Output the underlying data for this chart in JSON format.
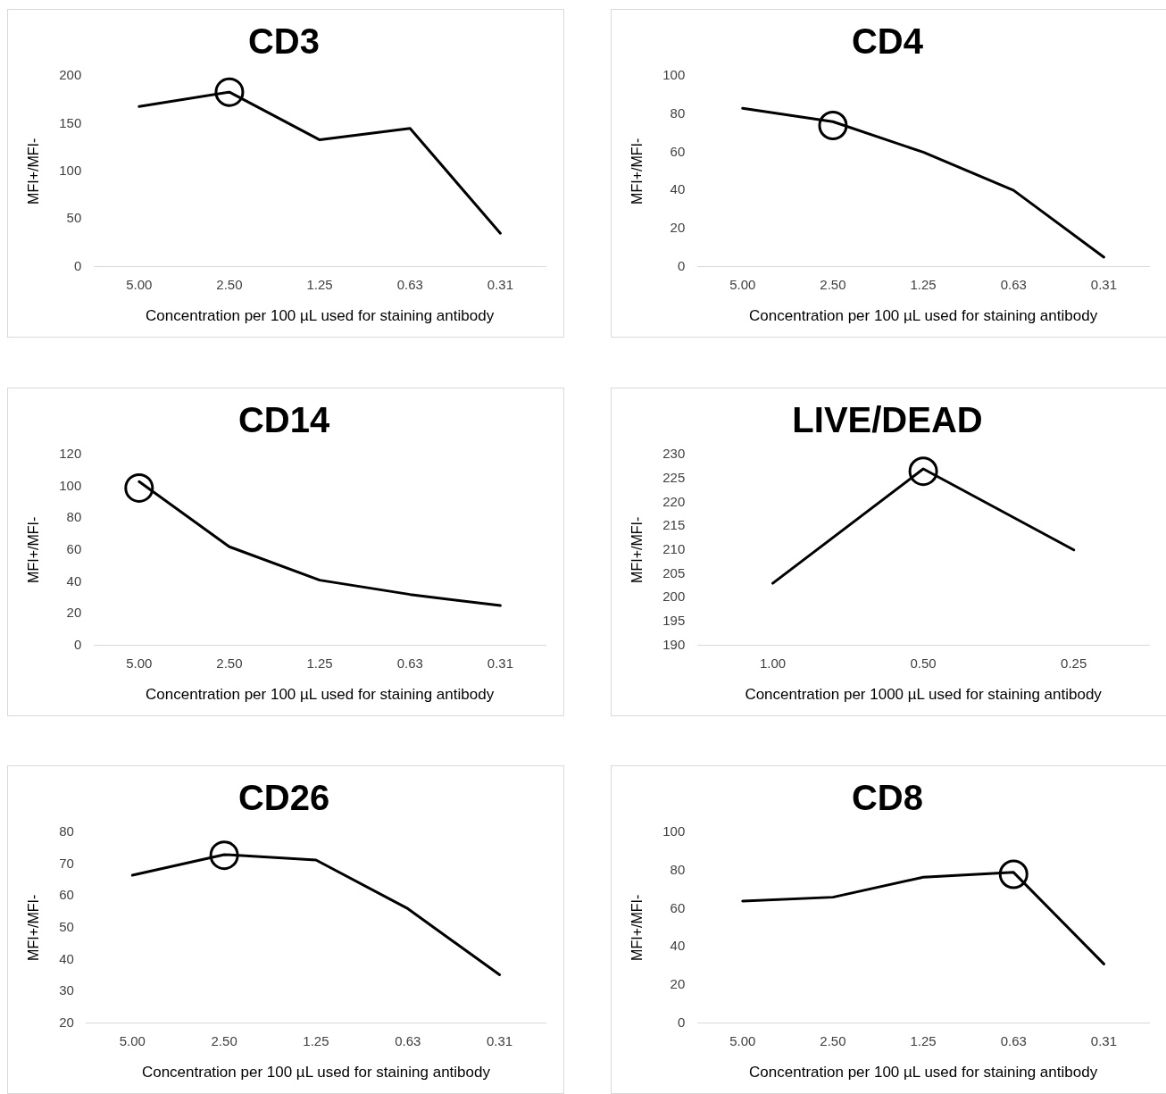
{
  "chart_data": [
    {
      "type": "line",
      "title": "CD3",
      "xlabel": "Concentration per 100 µL used for staining antibody",
      "ylabel": "MFI+/MFI-",
      "categories": [
        "5.00",
        "2.50",
        "1.25",
        "0.63",
        "0.31"
      ],
      "ylim": [
        0,
        200
      ],
      "yticks": [
        0,
        50,
        100,
        150,
        200
      ],
      "series": [
        {
          "color": "#000000",
          "values": [
            168,
            183,
            133,
            145,
            35
          ],
          "marker": "none"
        },
        {
          "type": "scatter",
          "x": [
            "2.50"
          ],
          "values": [
            183
          ],
          "color": "#000000",
          "marker": "circle"
        }
      ]
    },
    {
      "type": "line",
      "title": "CD4",
      "xlabel": "Concentration per 100 µL used for staining antibody",
      "ylabel": "MFI+/MFI-",
      "categories": [
        "5.00",
        "2.50",
        "1.25",
        "0.63",
        "0.31"
      ],
      "ylim": [
        0,
        100
      ],
      "yticks": [
        0,
        20,
        40,
        60,
        80,
        100
      ],
      "series": [
        {
          "color": "#000000",
          "values": [
            83,
            76,
            60,
            40,
            5
          ],
          "marker": "none"
        },
        {
          "type": "scatter",
          "x": [
            "2.50"
          ],
          "values": [
            74
          ],
          "color": "#000000",
          "marker": "circle"
        }
      ]
    },
    {
      "type": "line",
      "title": "CD14",
      "xlabel": "Concentration per 100 µL used for staining antibody",
      "ylabel": "MFI+/MFI-",
      "categories": [
        "5.00",
        "2.50",
        "1.25",
        "0.63",
        "0.31"
      ],
      "ylim": [
        0,
        120
      ],
      "yticks": [
        0,
        20,
        40,
        60,
        80,
        100,
        120
      ],
      "series": [
        {
          "color": "#000000",
          "values": [
            103,
            62,
            41,
            32,
            25
          ],
          "marker": "none"
        },
        {
          "type": "scatter",
          "x": [
            "5.00"
          ],
          "values": [
            99
          ],
          "color": "#000000",
          "marker": "circle"
        }
      ]
    },
    {
      "type": "line",
      "title": "LIVE/DEAD",
      "xlabel": "Concentration per 1000 µL used for staining antibody",
      "ylabel": "MFI+/MFI-",
      "categories": [
        "1.00",
        "0.50",
        "0.25"
      ],
      "ylim": [
        190,
        230
      ],
      "yticks": [
        190,
        195,
        200,
        205,
        210,
        215,
        220,
        225,
        230
      ],
      "series": [
        {
          "color": "#000000",
          "values": [
            203,
            227,
            210
          ],
          "marker": "none"
        },
        {
          "type": "scatter",
          "x": [
            "0.50"
          ],
          "values": [
            226.5
          ],
          "color": "#000000",
          "marker": "circle"
        }
      ]
    },
    {
      "type": "line",
      "title": "CD26",
      "xlabel": "Concentration per 100 µL used for staining antibody",
      "ylabel": "MFI+/MFI-",
      "categories": [
        "5.00",
        "2.50",
        "1.25",
        "0.63",
        "0.31"
      ],
      "ylim": [
        20,
        80
      ],
      "yticks": [
        20,
        30,
        40,
        50,
        60,
        70,
        80
      ],
      "series": [
        {
          "color": "#000000",
          "values": [
            66.5,
            73,
            71.3,
            56,
            35.2
          ],
          "marker": "none"
        },
        {
          "type": "scatter",
          "x": [
            "2.50"
          ],
          "values": [
            72.8
          ],
          "color": "#000000",
          "marker": "circle"
        }
      ]
    },
    {
      "type": "line",
      "title": "CD8",
      "xlabel": "Concentration per 100 µL used for staining antibody",
      "ylabel": "MFI+/MFI-",
      "categories": [
        "5.00",
        "2.50",
        "1.25",
        "0.63",
        "0.31"
      ],
      "ylim": [
        0,
        100
      ],
      "yticks": [
        0,
        20,
        40,
        60,
        80,
        100
      ],
      "series": [
        {
          "color": "#000000",
          "values": [
            64,
            66,
            76.5,
            79,
            31
          ],
          "marker": "none"
        },
        {
          "type": "scatter",
          "x": [
            "0.63"
          ],
          "values": [
            78
          ],
          "color": "#000000",
          "marker": "circle"
        }
      ]
    }
  ]
}
